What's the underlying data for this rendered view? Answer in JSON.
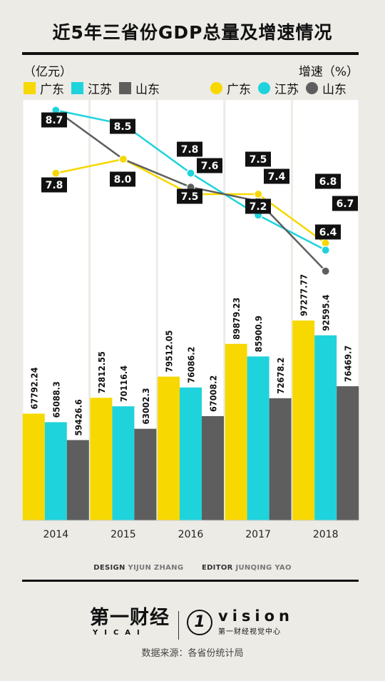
{
  "title": "近5年三省份GDP总量及增速情况",
  "unit_left": "（亿元）",
  "unit_right": "增速（%）",
  "legend": [
    "广东",
    "江苏",
    "山东"
  ],
  "colors": {
    "广东": "#f7d800",
    "江苏": "#1fd3dc",
    "山东": "#5e5e5e"
  },
  "chart_data": {
    "type": "bar+line",
    "categories": [
      "2014",
      "2015",
      "2016",
      "2017",
      "2018"
    ],
    "gdp_series": [
      {
        "name": "广东",
        "values": [
          67792.24,
          72812.55,
          79512.05,
          89879.23,
          97277.77
        ]
      },
      {
        "name": "江苏",
        "values": [
          65088.3,
          70116.4,
          76086.2,
          85900.9,
          92595.4
        ]
      },
      {
        "name": "山东",
        "values": [
          59426.6,
          63002.3,
          67008.2,
          72678.2,
          76469.7
        ]
      }
    ],
    "gdp_labels": [
      [
        "67792.24",
        "72812.55",
        "79512.05",
        "89879.23",
        "97277.77"
      ],
      [
        "65088.3",
        "70116.4",
        "76086.2",
        "85900.9",
        "92595.4"
      ],
      [
        "59426.6",
        "63002.3",
        "67008.2",
        "72678.2",
        "76469.7"
      ]
    ],
    "growth_series": [
      {
        "name": "广东",
        "values": [
          7.8,
          8.0,
          7.5,
          7.5,
          6.8
        ]
      },
      {
        "name": "江苏",
        "values": [
          8.7,
          8.5,
          7.8,
          7.2,
          6.7
        ]
      },
      {
        "name": "山东",
        "values": [
          8.7,
          8.0,
          7.6,
          7.4,
          6.4
        ]
      }
    ],
    "growth_labels": [
      {
        "category": "2014",
        "text": "8.7"
      },
      {
        "category": "2014",
        "text": "7.8"
      },
      {
        "category": "2015",
        "text": "8.5"
      },
      {
        "category": "2015",
        "text": "8.0"
      },
      {
        "category": "2016",
        "text": "7.8"
      },
      {
        "category": "2016",
        "text": "7.6"
      },
      {
        "category": "2016",
        "text": "7.5"
      },
      {
        "category": "2017",
        "text": "7.5"
      },
      {
        "category": "2017",
        "text": "7.4"
      },
      {
        "category": "2017",
        "text": "7.2"
      },
      {
        "category": "2018",
        "text": "6.8"
      },
      {
        "category": "2018",
        "text": "6.7"
      },
      {
        "category": "2018",
        "text": "6.4"
      }
    ],
    "grid": "vertical"
  },
  "credits": {
    "design_label": "DESIGN",
    "design_name": "YIJUN ZHANG",
    "editor_label": "EDITOR",
    "editor_name": "JUNQING YAO"
  },
  "logos": {
    "yicai_main": "第一财经",
    "yicai_sub": "YICAI",
    "vision_circle": "1",
    "vision_word": "vision",
    "vision_sub": "第一财经视觉中心"
  },
  "source": "数据来源：各省份统计局"
}
